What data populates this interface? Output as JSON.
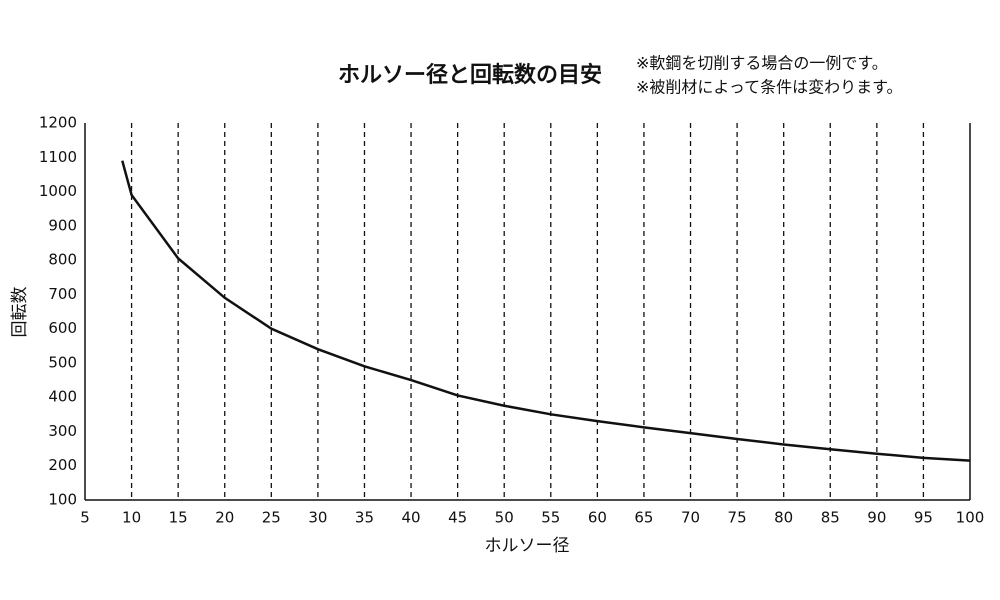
{
  "chart_data": {
    "type": "line",
    "title": "ホルソー径と回転数の目安",
    "annotations": [
      "※軟鋼を切削する場合の一例です。",
      "※被削材によって条件は変わります。"
    ],
    "x_label": "ホルソー径",
    "y_label": "回転数",
    "x": [
      9,
      10,
      15,
      20,
      25,
      30,
      35,
      40,
      45,
      50,
      55,
      60,
      65,
      70,
      75,
      80,
      85,
      90,
      95,
      100
    ],
    "values": [
      1090,
      990,
      805,
      690,
      600,
      540,
      490,
      450,
      405,
      375,
      350,
      330,
      312,
      295,
      278,
      262,
      248,
      235,
      223,
      215
    ],
    "color": "#111111",
    "xlim": [
      5,
      100
    ],
    "xticks": [
      5,
      10,
      15,
      20,
      25,
      30,
      35,
      40,
      45,
      50,
      55,
      60,
      65,
      70,
      75,
      80,
      85,
      90,
      95,
      100
    ],
    "ylim": [
      100,
      1200
    ],
    "yticks": [
      100,
      200,
      300,
      400,
      500,
      600,
      700,
      800,
      900,
      1000,
      1100,
      1200
    ],
    "grid": "x-dashed"
  }
}
